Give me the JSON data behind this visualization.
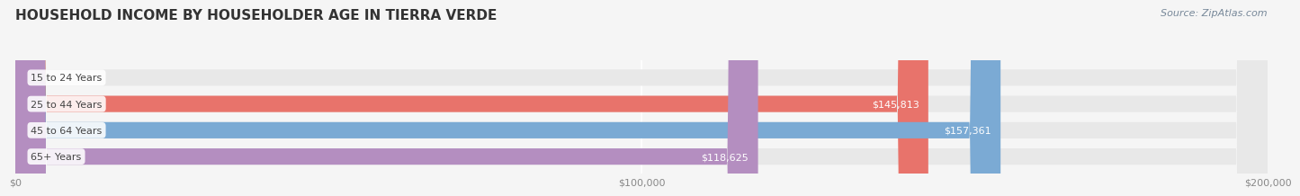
{
  "title": "HOUSEHOLD INCOME BY HOUSEHOLDER AGE IN TIERRA VERDE",
  "source": "Source: ZipAtlas.com",
  "categories": [
    "15 to 24 Years",
    "25 to 44 Years",
    "45 to 64 Years",
    "65+ Years"
  ],
  "values": [
    0,
    145813,
    157361,
    118625
  ],
  "bar_colors": [
    "#f5c9a0",
    "#e8736b",
    "#7baad4",
    "#b48ec0"
  ],
  "background_color": "#f5f5f5",
  "bar_background_color": "#e8e8e8",
  "xlim": [
    0,
    200000
  ],
  "xticks": [
    0,
    100000,
    200000
  ],
  "xtick_labels": [
    "$0",
    "$100,000",
    "$200,000"
  ],
  "title_fontsize": 11,
  "source_fontsize": 8,
  "tick_fontsize": 8,
  "bar_label_fontsize": 8,
  "category_fontsize": 8
}
